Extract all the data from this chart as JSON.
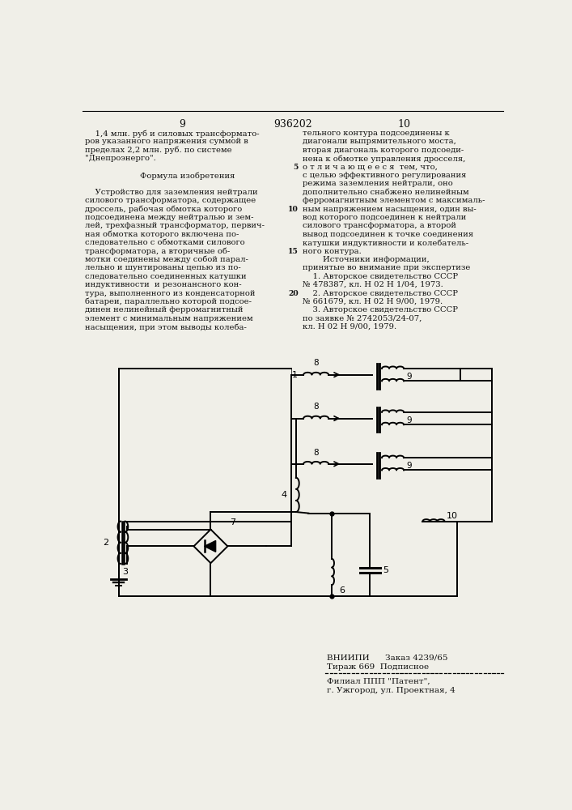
{
  "bg_color": "#e8e8e4",
  "page_color": "#f0efe8",
  "text_color": "#111111",
  "page_num_left": "9",
  "page_num_center": "936202",
  "page_num_right": "10",
  "left_col_lines": [
    "    1,4 млн. руб и силовых трансформато-",
    "ров указанного напряжения суммой в",
    "пределах 2,2 млн. руб. по системе",
    "\"Днепроэнерго\".",
    "",
    "         Формула изобретения",
    "",
    "    Устройство для заземления нейтрали",
    "силового трансформатора, содержащее",
    "дроссель, рабочая обмотка которого",
    "подсоединена между нейтралью и зем-",
    "лей, трехфазный трансформатор, первич-",
    "ная обмотка которого включена по-",
    "следовательно с обмотками силового",
    "трансформатора, а вторичные об-",
    "мотки соединены между собой парал-",
    "лельно и шунтированы цепью из по-",
    "следовательно соединенных катушки",
    "индуктивности  и резонансного кон-",
    "тура, выполненного из конденсаторной",
    "батареи, параллельно которой подсое-",
    "динен нелинейный ферромагнитный",
    "элемент с минимальным напряжением",
    "насыщения, при этом выводы колеба-"
  ],
  "right_col_lines": [
    "тельного контура подсоединены к",
    "диагонали выпрямительного моста,",
    "вторая диагональ которого подсоеди-",
    "нена к обмотке управления дросселя,",
    "о т л и ч а ю щ е е с я  тем, что,",
    "с целью эффективного регулирования",
    "режима заземления нейтрали, оно",
    "дополнительно снабжено нелинейным",
    "ферромагнитным элементом с максималь-",
    "ным напряжением насыщения, один вы-",
    "вод которого подсоединен к нейтрали",
    "силового трансформатора, а второй",
    "вывод подсоединен к точке соединения",
    "катушки индуктивности и колебатель-",
    "ного контура.",
    "        Источники информации,",
    "принятые во внимание при экспертизе",
    "    1. Авторское свидетельство СССР",
    "№ 478387, кл. Н 02 Н 1/04, 1973.",
    "    2. Авторское свидетельство СССР",
    "№ 661679, кл. Н 02 Н 9/00, 1979.",
    "    3. Авторское свидетельство СССР",
    "по заявке № 2742053/24-07,",
    "кл. Н 02 Н 9/00, 1979."
  ],
  "right_col_line_numbers": [
    "",
    "",
    "",
    "",
    "5",
    "",
    "",
    "",
    "",
    "10",
    "",
    "",
    "",
    "",
    "15",
    "",
    "",
    "",
    "",
    "20",
    "",
    "",
    "",
    ""
  ],
  "footer_line1": "ВНИИПИ      Заказ 4239/65",
  "footer_line2": "Тираж 669  Подписное",
  "footer_line3": "Филиал ППП \"Патент\",",
  "footer_line4": "г. Ужгород, ул. Проектная, 4"
}
